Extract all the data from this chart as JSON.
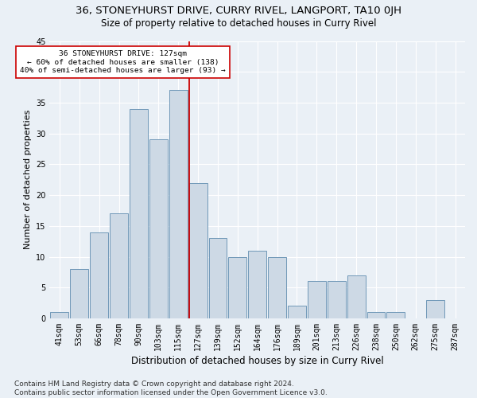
{
  "title": "36, STONEYHURST DRIVE, CURRY RIVEL, LANGPORT, TA10 0JH",
  "subtitle": "Size of property relative to detached houses in Curry Rivel",
  "xlabel": "Distribution of detached houses by size in Curry Rivel",
  "ylabel": "Number of detached properties",
  "categories": [
    "41sqm",
    "53sqm",
    "66sqm",
    "78sqm",
    "90sqm",
    "103sqm",
    "115sqm",
    "127sqm",
    "139sqm",
    "152sqm",
    "164sqm",
    "176sqm",
    "189sqm",
    "201sqm",
    "213sqm",
    "226sqm",
    "238sqm",
    "250sqm",
    "262sqm",
    "275sqm",
    "287sqm"
  ],
  "values": [
    1,
    8,
    14,
    17,
    34,
    29,
    37,
    22,
    13,
    10,
    11,
    10,
    2,
    6,
    6,
    7,
    1,
    1,
    0,
    3,
    0
  ],
  "bar_color": "#cdd9e5",
  "bar_edge_color": "#7098b8",
  "highlight_index": 7,
  "red_line_color": "#cc0000",
  "annotation_text": "36 STONEYHURST DRIVE: 127sqm\n← 60% of detached houses are smaller (138)\n40% of semi-detached houses are larger (93) →",
  "annotation_box_color": "#ffffff",
  "annotation_box_edge": "#cc0000",
  "ylim": [
    0,
    45
  ],
  "yticks": [
    0,
    5,
    10,
    15,
    20,
    25,
    30,
    35,
    40,
    45
  ],
  "footer": "Contains HM Land Registry data © Crown copyright and database right 2024.\nContains public sector information licensed under the Open Government Licence v3.0.",
  "bg_color": "#eaf0f6",
  "grid_color": "#ffffff",
  "title_fontsize": 9.5,
  "subtitle_fontsize": 8.5,
  "xlabel_fontsize": 8.5,
  "ylabel_fontsize": 8,
  "tick_fontsize": 7,
  "footer_fontsize": 6.5
}
